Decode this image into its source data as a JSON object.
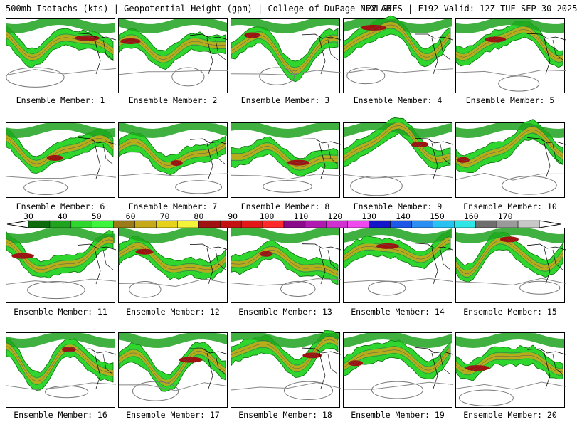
{
  "header": {
    "left": "500mb Isotachs (kts) | Geopotential Height (gpm) | College of DuPage NEXLAB",
    "right": "12Z GEFS | F192 Valid: 12Z TUE SEP 30 2025"
  },
  "members": [
    {
      "label": "Ensemble Member: 1"
    },
    {
      "label": "Ensemble Member: 2"
    },
    {
      "label": "Ensemble Member: 3"
    },
    {
      "label": "Ensemble Member: 4"
    },
    {
      "label": "Ensemble Member: 5"
    },
    {
      "label": "Ensemble Member: 6"
    },
    {
      "label": "Ensemble Member: 7"
    },
    {
      "label": "Ensemble Member: 8"
    },
    {
      "label": "Ensemble Member: 9"
    },
    {
      "label": "Ensemble Member: 10"
    },
    {
      "label": "Ensemble Member: 11"
    },
    {
      "label": "Ensemble Member: 12"
    },
    {
      "label": "Ensemble Member: 13"
    },
    {
      "label": "Ensemble Member: 14"
    },
    {
      "label": "Ensemble Member: 15"
    },
    {
      "label": "Ensemble Member: 16"
    },
    {
      "label": "Ensemble Member: 17"
    },
    {
      "label": "Ensemble Member: 18"
    },
    {
      "label": "Ensemble Member: 19"
    },
    {
      "label": "Ensemble Member: 20"
    }
  ],
  "colorbar": {
    "labels": [
      "30",
      "40",
      "50",
      "60",
      "70",
      "80",
      "90",
      "100",
      "110",
      "120",
      "130",
      "140",
      "150",
      "160",
      "170"
    ],
    "colors": [
      "#0d6b0d",
      "#1fa31f",
      "#2ed62e",
      "#3cf53c",
      "#9b7a17",
      "#c6a81b",
      "#e6d21a",
      "#f3f33a",
      "#a0120f",
      "#c41212",
      "#e21818",
      "#ff2a2a",
      "#8a0a8a",
      "#b01ab0",
      "#d030d0",
      "#ee48ee",
      "#1414c8",
      "#1e58e6",
      "#2a8ef2",
      "#28c2f2",
      "#2ee6e6",
      "#6e6e6e",
      "#9a9a9a",
      "#c8c8c8"
    ]
  }
}
